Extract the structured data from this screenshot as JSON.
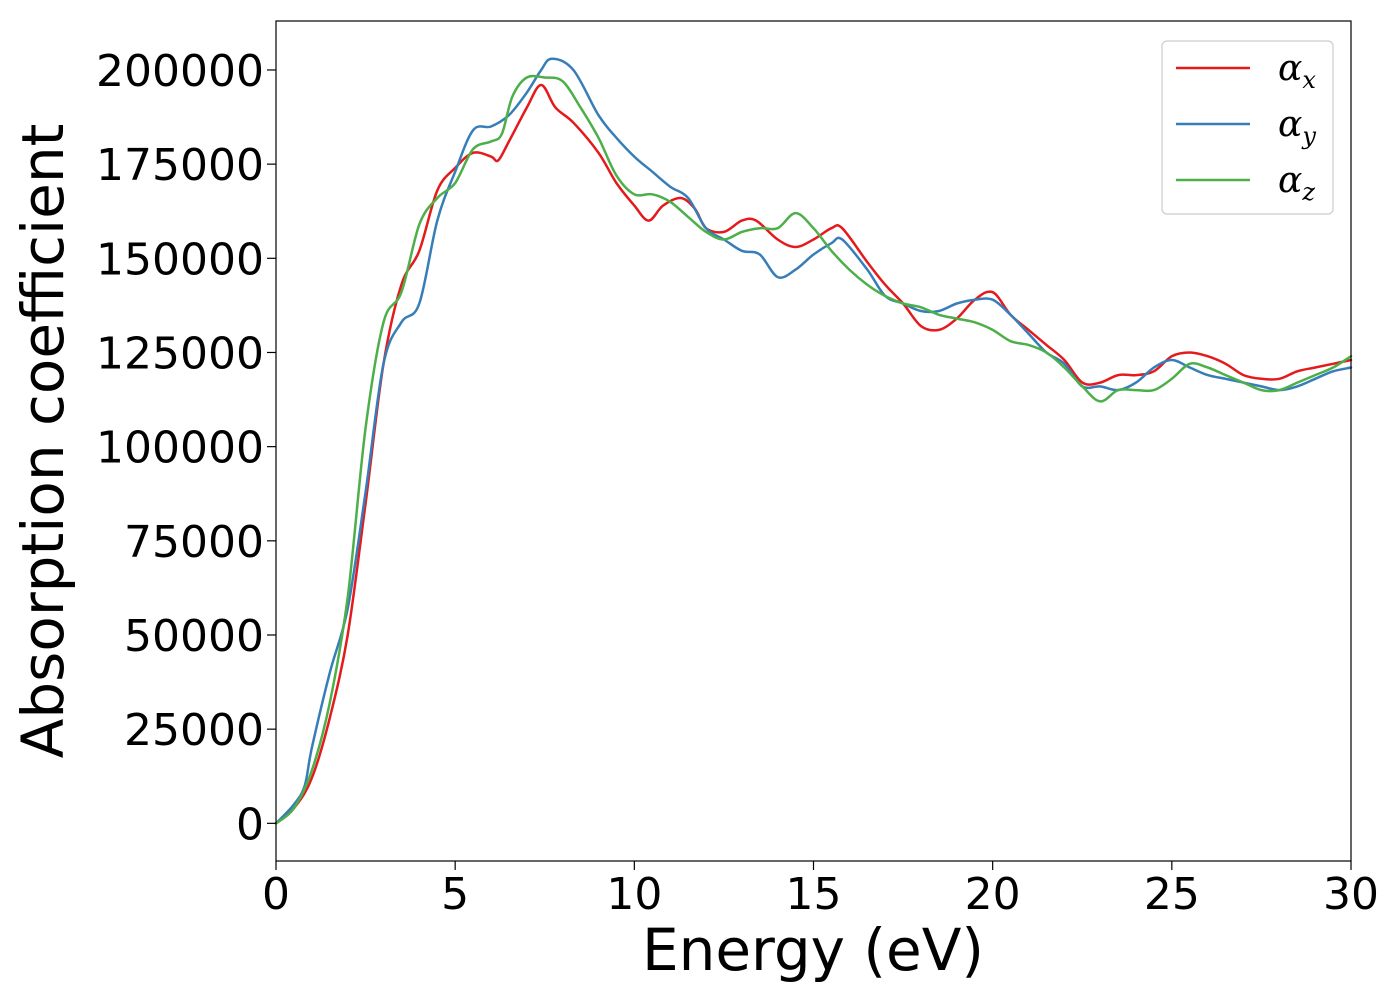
{
  "chart_data": {
    "type": "line",
    "xlabel": "Energy (eV)",
    "ylabel": "Absorption coefficient",
    "xlim": [
      0,
      30
    ],
    "ylim": [
      -10000,
      213000
    ],
    "xticks": [
      0,
      5,
      10,
      15,
      20,
      25,
      30
    ],
    "yticks": [
      0,
      25000,
      50000,
      75000,
      100000,
      125000,
      150000,
      175000,
      200000
    ],
    "legend_position": "top-right",
    "grid": false,
    "series": [
      {
        "name": "α_x",
        "legend_base": "α",
        "legend_sub": "x",
        "color": "#e41a1c",
        "points": [
          [
            0,
            0
          ],
          [
            0.5,
            4000
          ],
          [
            1,
            12000
          ],
          [
            1.5,
            28000
          ],
          [
            2,
            50000
          ],
          [
            2.5,
            85000
          ],
          [
            3,
            122000
          ],
          [
            3.5,
            143000
          ],
          [
            4,
            152000
          ],
          [
            4.5,
            168000
          ],
          [
            5,
            174000
          ],
          [
            5.5,
            178000
          ],
          [
            6,
            177000
          ],
          [
            6.2,
            176000
          ],
          [
            6.5,
            181000
          ],
          [
            7,
            190000
          ],
          [
            7.4,
            196000
          ],
          [
            7.8,
            190000
          ],
          [
            8.3,
            186000
          ],
          [
            9,
            178000
          ],
          [
            9.5,
            170000
          ],
          [
            10,
            164000
          ],
          [
            10.4,
            160000
          ],
          [
            10.8,
            164000
          ],
          [
            11.3,
            166000
          ],
          [
            11.7,
            163000
          ],
          [
            12,
            158000
          ],
          [
            12.5,
            157000
          ],
          [
            13,
            160000
          ],
          [
            13.4,
            160000
          ],
          [
            14,
            155000
          ],
          [
            14.5,
            153000
          ],
          [
            15,
            155000
          ],
          [
            15.5,
            158000
          ],
          [
            15.8,
            158000
          ],
          [
            16.5,
            149000
          ],
          [
            17,
            143000
          ],
          [
            17.5,
            138000
          ],
          [
            18,
            132000
          ],
          [
            18.5,
            131000
          ],
          [
            19,
            134000
          ],
          [
            19.5,
            139000
          ],
          [
            20,
            141000
          ],
          [
            20.5,
            135000
          ],
          [
            21,
            131000
          ],
          [
            21.5,
            127000
          ],
          [
            22,
            123000
          ],
          [
            22.5,
            117000
          ],
          [
            23,
            117000
          ],
          [
            23.5,
            119000
          ],
          [
            24,
            119000
          ],
          [
            24.5,
            120000
          ],
          [
            25,
            124000
          ],
          [
            25.5,
            125000
          ],
          [
            26,
            124000
          ],
          [
            26.5,
            122000
          ],
          [
            27,
            119000
          ],
          [
            27.5,
            118000
          ],
          [
            28,
            118000
          ],
          [
            28.5,
            120000
          ],
          [
            29,
            121000
          ],
          [
            29.5,
            122000
          ],
          [
            30,
            123000
          ]
        ]
      },
      {
        "name": "α_y",
        "legend_base": "α",
        "legend_sub": "y",
        "color": "#377eb8",
        "points": [
          [
            0,
            0
          ],
          [
            0.5,
            5000
          ],
          [
            0.8,
            10000
          ],
          [
            1,
            20000
          ],
          [
            1.5,
            40000
          ],
          [
            2,
            57000
          ],
          [
            2.5,
            88000
          ],
          [
            3,
            122000
          ],
          [
            3.5,
            133000
          ],
          [
            4,
            138000
          ],
          [
            4.5,
            160000
          ],
          [
            5,
            173000
          ],
          [
            5.5,
            184000
          ],
          [
            6,
            185000
          ],
          [
            6.5,
            188000
          ],
          [
            7,
            194000
          ],
          [
            7.4,
            200000
          ],
          [
            7.7,
            203000
          ],
          [
            8.3,
            200000
          ],
          [
            9,
            188000
          ],
          [
            9.5,
            182000
          ],
          [
            10,
            177000
          ],
          [
            10.5,
            173000
          ],
          [
            11,
            169000
          ],
          [
            11.5,
            166000
          ],
          [
            12,
            158000
          ],
          [
            12.5,
            155000
          ],
          [
            13,
            152000
          ],
          [
            13.5,
            151000
          ],
          [
            14,
            145000
          ],
          [
            14.5,
            147000
          ],
          [
            15,
            151000
          ],
          [
            15.5,
            154000
          ],
          [
            15.8,
            155000
          ],
          [
            16.5,
            147000
          ],
          [
            17,
            140000
          ],
          [
            17.5,
            138000
          ],
          [
            18,
            136000
          ],
          [
            18.5,
            136000
          ],
          [
            19,
            138000
          ],
          [
            19.5,
            139000
          ],
          [
            20,
            139000
          ],
          [
            20.5,
            135000
          ],
          [
            21,
            130000
          ],
          [
            21.5,
            125000
          ],
          [
            22,
            122000
          ],
          [
            22.5,
            116000
          ],
          [
            23,
            116000
          ],
          [
            23.5,
            115000
          ],
          [
            24,
            117000
          ],
          [
            24.5,
            121000
          ],
          [
            25,
            123000
          ],
          [
            25.5,
            121000
          ],
          [
            26,
            119000
          ],
          [
            26.5,
            118000
          ],
          [
            27,
            117000
          ],
          [
            27.5,
            116000
          ],
          [
            28,
            115000
          ],
          [
            28.5,
            116000
          ],
          [
            29,
            118000
          ],
          [
            29.5,
            120000
          ],
          [
            30,
            121000
          ]
        ]
      },
      {
        "name": "α_z",
        "legend_base": "α",
        "legend_sub": "z",
        "color": "#4daf4a",
        "points": [
          [
            0,
            0
          ],
          [
            0.5,
            4000
          ],
          [
            1,
            14000
          ],
          [
            1.5,
            32000
          ],
          [
            2,
            60000
          ],
          [
            2.5,
            105000
          ],
          [
            3,
            133000
          ],
          [
            3.5,
            141000
          ],
          [
            4,
            159000
          ],
          [
            4.5,
            166000
          ],
          [
            5,
            170000
          ],
          [
            5.5,
            179000
          ],
          [
            6,
            181000
          ],
          [
            6.3,
            183000
          ],
          [
            6.6,
            193000
          ],
          [
            7,
            198000
          ],
          [
            7.5,
            198000
          ],
          [
            8,
            197000
          ],
          [
            8.5,
            190000
          ],
          [
            9,
            182000
          ],
          [
            9.5,
            172000
          ],
          [
            10,
            167000
          ],
          [
            10.5,
            167000
          ],
          [
            11,
            165000
          ],
          [
            11.5,
            161000
          ],
          [
            12,
            157000
          ],
          [
            12.5,
            155000
          ],
          [
            13,
            157000
          ],
          [
            13.5,
            158000
          ],
          [
            14,
            158000
          ],
          [
            14.5,
            162000
          ],
          [
            15,
            158000
          ],
          [
            15.5,
            152000
          ],
          [
            16,
            147000
          ],
          [
            16.5,
            143000
          ],
          [
            17,
            140000
          ],
          [
            17.5,
            138000
          ],
          [
            18,
            137000
          ],
          [
            18.5,
            135000
          ],
          [
            19,
            134000
          ],
          [
            19.5,
            133000
          ],
          [
            20,
            131000
          ],
          [
            20.5,
            128000
          ],
          [
            21,
            127000
          ],
          [
            21.5,
            125000
          ],
          [
            22,
            121000
          ],
          [
            22.5,
            116000
          ],
          [
            23,
            112000
          ],
          [
            23.5,
            115000
          ],
          [
            24,
            115000
          ],
          [
            24.5,
            115000
          ],
          [
            25,
            118000
          ],
          [
            25.5,
            122000
          ],
          [
            26,
            121000
          ],
          [
            26.5,
            119000
          ],
          [
            27,
            117000
          ],
          [
            27.5,
            115000
          ],
          [
            28,
            115000
          ],
          [
            28.5,
            117000
          ],
          [
            29,
            119000
          ],
          [
            29.5,
            121000
          ],
          [
            30,
            124000
          ]
        ]
      }
    ]
  }
}
